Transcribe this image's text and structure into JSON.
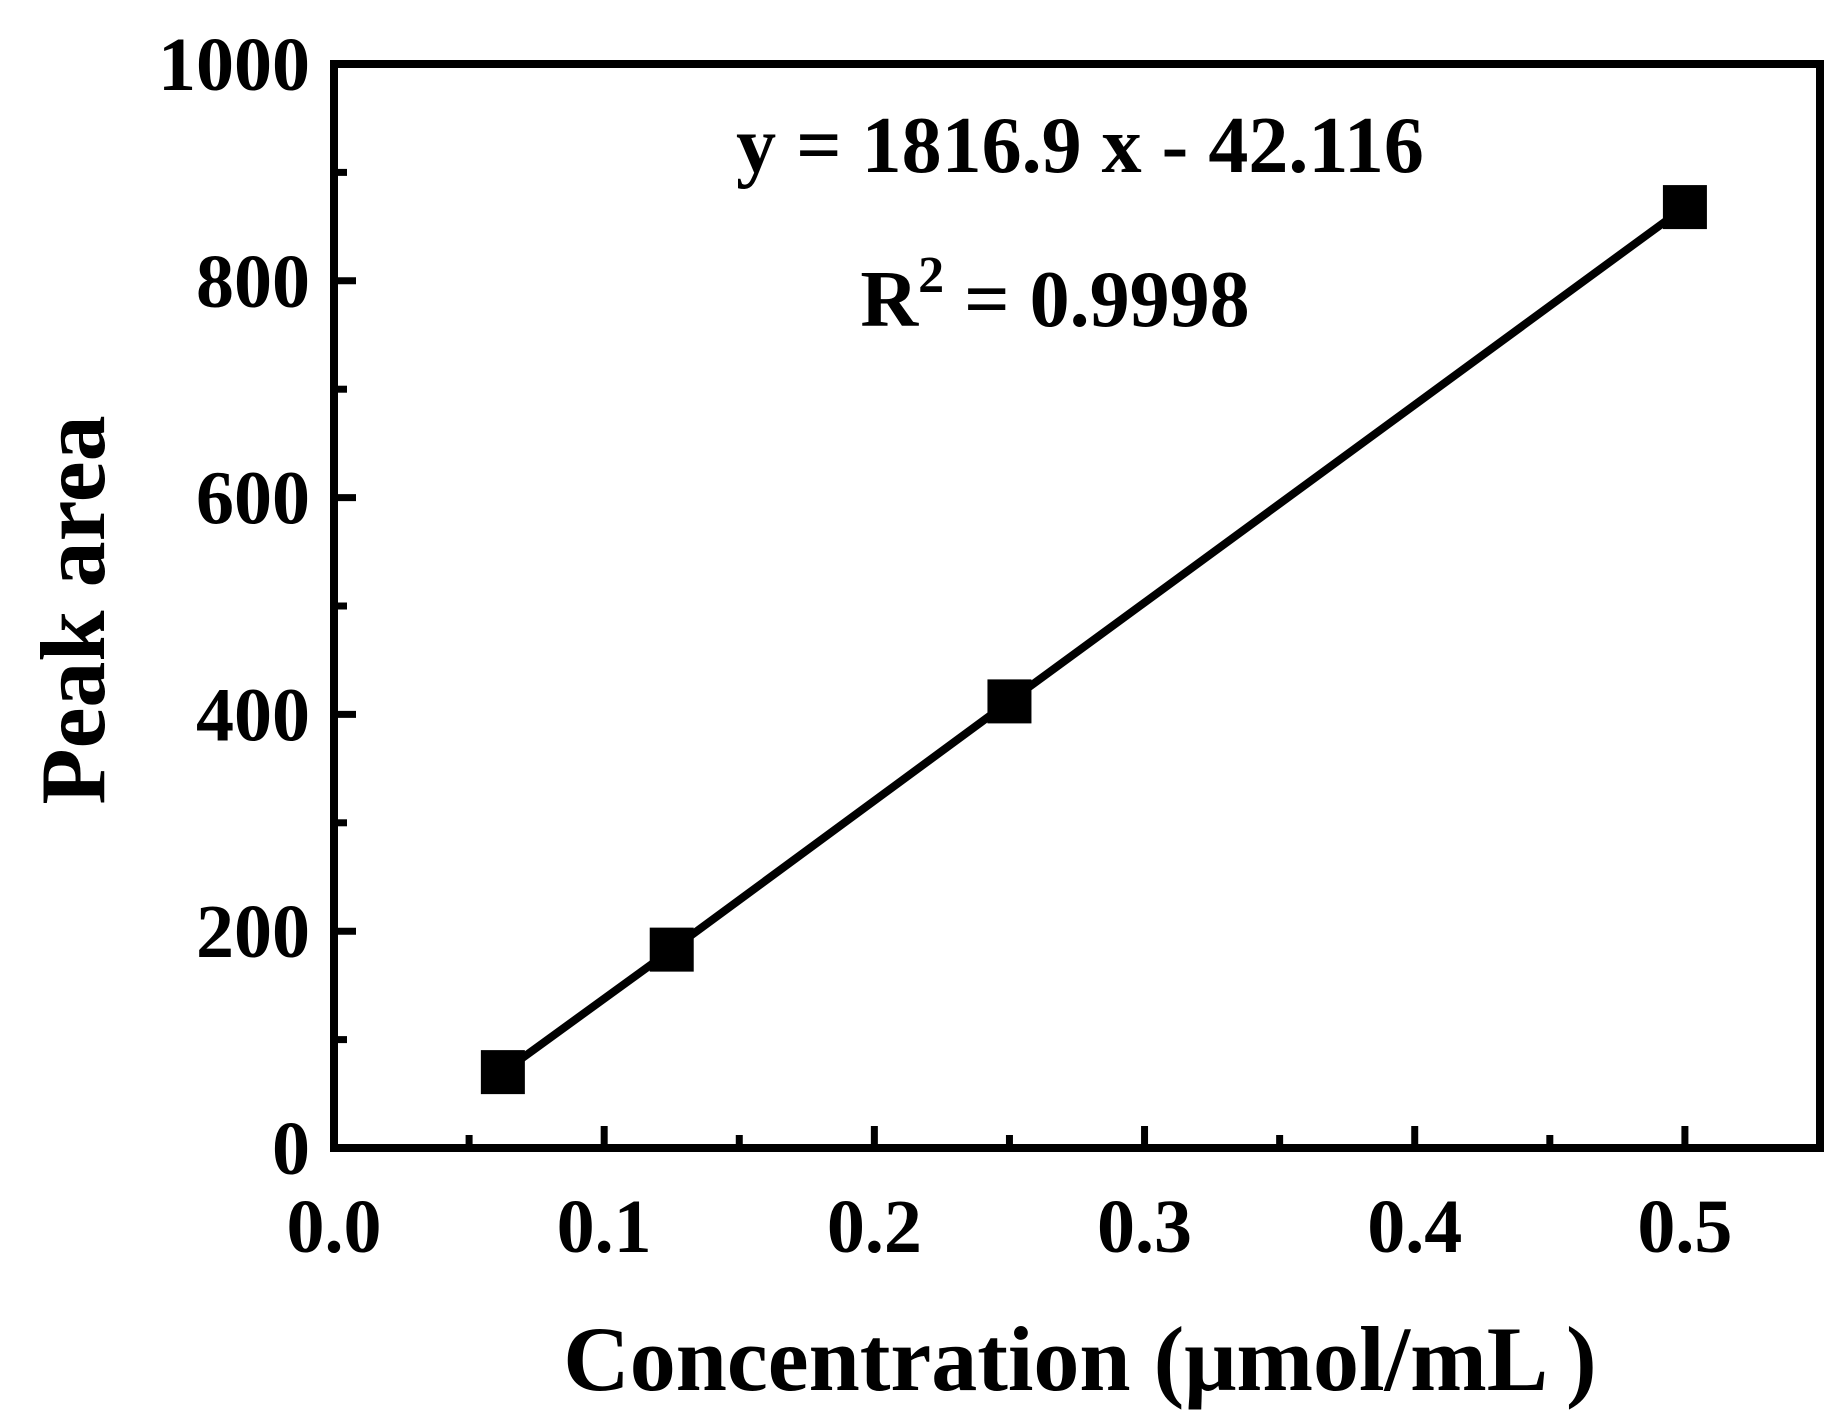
{
  "chart_data": {
    "type": "line",
    "xlabel": "Concentration (μmol/mL )",
    "ylabel": "Peak area",
    "xlim": [
      0.0,
      0.55
    ],
    "ylim": [
      0,
      1000
    ],
    "x_ticks": [
      0.0,
      0.1,
      0.2,
      0.3,
      0.4,
      0.5
    ],
    "x_tick_labels": [
      "0.0",
      "0.1",
      "0.2",
      "0.3",
      "0.4",
      "0.5"
    ],
    "y_ticks": [
      0,
      200,
      400,
      600,
      800,
      1000
    ],
    "y_tick_labels": [
      "0",
      "200",
      "400",
      "600",
      "800",
      "1000"
    ],
    "grid": false,
    "series": [
      {
        "x": [
          0.0625,
          0.125,
          0.25,
          0.5
        ],
        "y": [
          70,
          183,
          412,
          868
        ],
        "marker": "square",
        "color": "#000000"
      }
    ],
    "annotations": {
      "equation": "y = 1816.9 x - 42.116",
      "r2_label": "R",
      "r2_exp": "2",
      "r2_value": " = 0.9998"
    }
  }
}
